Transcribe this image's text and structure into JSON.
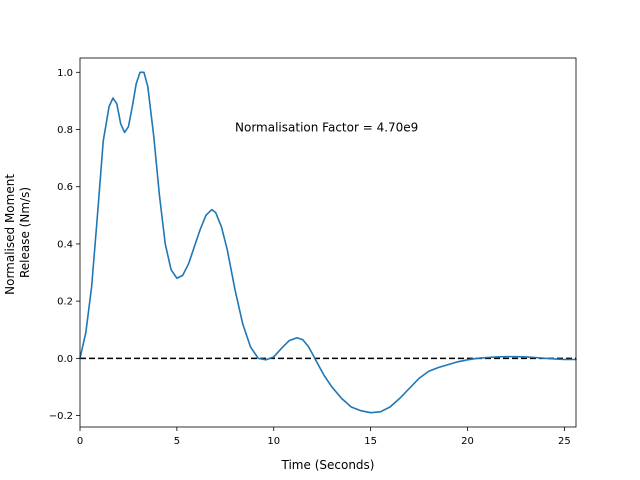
{
  "chart_data": {
    "type": "line",
    "title": "",
    "xlabel": "Time (Seconds)",
    "ylabel_lines": [
      "Normalised Moment",
      "Release (Nm/s)"
    ],
    "xlim": [
      0,
      25.6
    ],
    "ylim": [
      -0.24,
      1.05
    ],
    "xticks": [
      0,
      5,
      10,
      15,
      20,
      25
    ],
    "yticks": [
      -0.2,
      0.0,
      0.2,
      0.4,
      0.6,
      0.8,
      1.0
    ],
    "ytick_labels": [
      "−0.2",
      "0.0",
      "0.2",
      "0.4",
      "0.6",
      "0.8",
      "1.0"
    ],
    "grid": false,
    "annotation": {
      "text": "Normalisation Factor = 4.70e9",
      "x": 8.0,
      "y": 0.81
    },
    "reference_line": {
      "y": 0,
      "style": "dashed",
      "color": "#000000"
    },
    "series": [
      {
        "color": "#1f77b4",
        "x": [
          0,
          0.3,
          0.6,
          0.9,
          1.2,
          1.5,
          1.7,
          1.9,
          2.1,
          2.3,
          2.5,
          2.7,
          2.9,
          3.1,
          3.3,
          3.5,
          3.8,
          4.1,
          4.4,
          4.7,
          5.0,
          5.3,
          5.6,
          5.9,
          6.2,
          6.5,
          6.8,
          7.0,
          7.3,
          7.6,
          8.0,
          8.4,
          8.8,
          9.2,
          9.6,
          10.0,
          10.4,
          10.8,
          11.2,
          11.5,
          11.8,
          12.2,
          12.6,
          13.0,
          13.5,
          14.0,
          14.5,
          15.0,
          15.5,
          16.0,
          16.5,
          17.0,
          17.5,
          18.0,
          18.5,
          19.0,
          19.5,
          20.0,
          20.5,
          21.0,
          21.5,
          22.0,
          22.5,
          23.0,
          23.5,
          24.0,
          24.5,
          25.0,
          25.6
        ],
        "y": [
          0.0,
          0.09,
          0.25,
          0.5,
          0.76,
          0.88,
          0.91,
          0.89,
          0.82,
          0.79,
          0.81,
          0.88,
          0.96,
          1.0,
          1.0,
          0.95,
          0.78,
          0.57,
          0.4,
          0.31,
          0.28,
          0.29,
          0.33,
          0.39,
          0.45,
          0.5,
          0.52,
          0.51,
          0.46,
          0.38,
          0.24,
          0.12,
          0.04,
          0.0,
          -0.005,
          0.005,
          0.035,
          0.062,
          0.072,
          0.065,
          0.04,
          -0.01,
          -0.06,
          -0.1,
          -0.14,
          -0.17,
          -0.183,
          -0.19,
          -0.187,
          -0.17,
          -0.14,
          -0.105,
          -0.07,
          -0.045,
          -0.032,
          -0.022,
          -0.012,
          -0.005,
          0.0,
          0.003,
          0.005,
          0.006,
          0.006,
          0.005,
          0.003,
          0.0,
          -0.002,
          -0.004,
          -0.004
        ]
      }
    ]
  }
}
